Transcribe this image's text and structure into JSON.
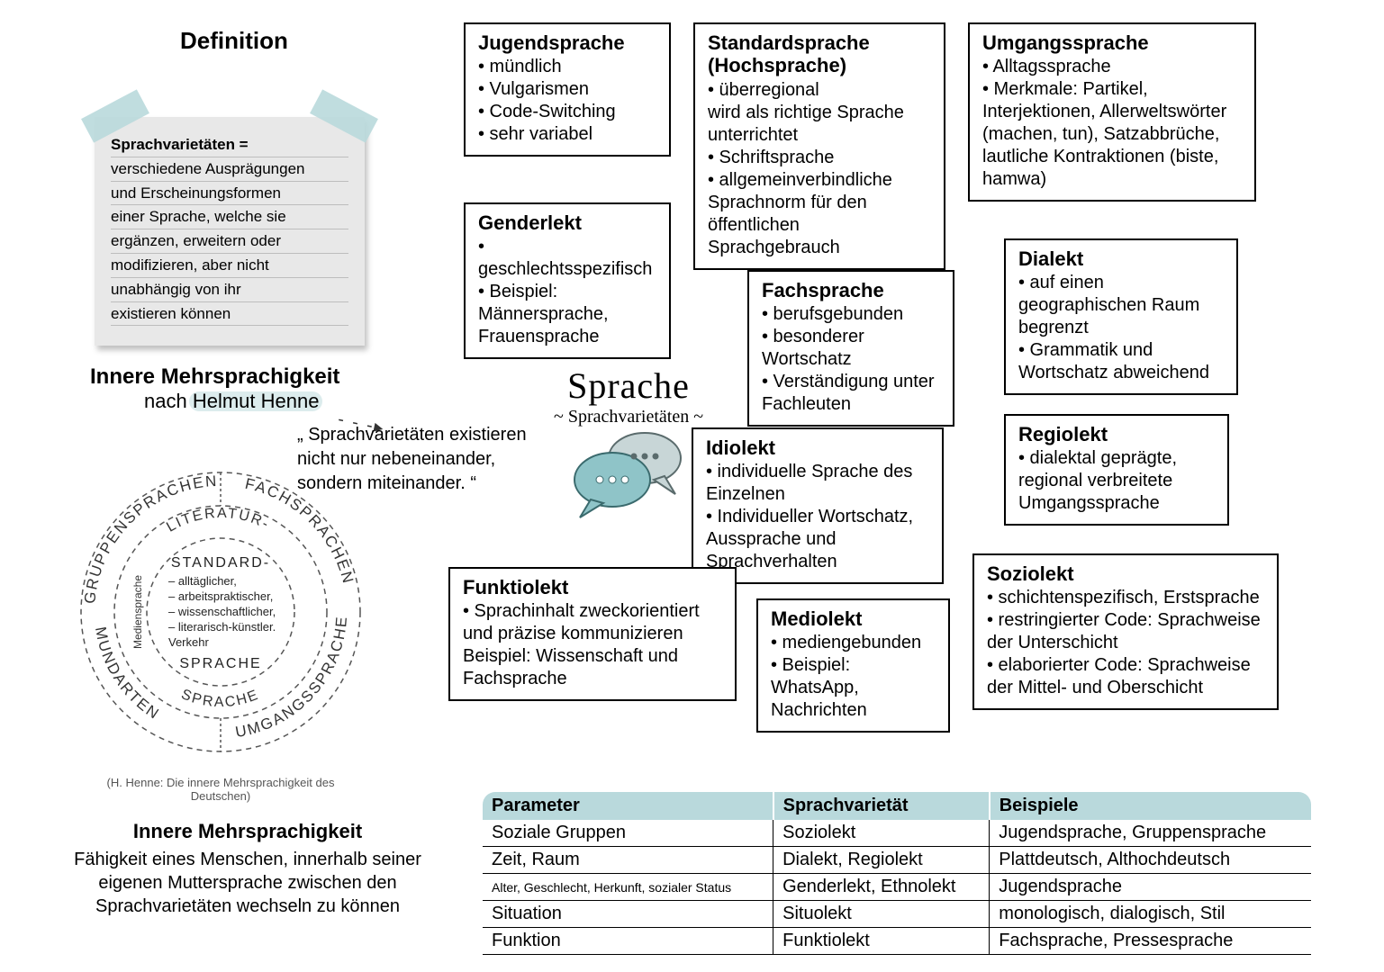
{
  "colors": {
    "accent": "#b9d9dc",
    "note_bg": "#e8e8e8",
    "border": "#000000"
  },
  "definition": {
    "heading": "Definition",
    "note_title": "Sprachvarietäten =",
    "note_lines": [
      "verschiedene Ausprägungen",
      "und Erscheinungsformen",
      "einer Sprache, welche sie",
      "ergänzen, erweitern oder",
      "modifizieren, aber nicht",
      "unabhängig von ihr",
      "existieren können"
    ]
  },
  "innere": {
    "title": "Innere Mehrsprachigkeit",
    "sub_prefix": "nach ",
    "sub_highlight": "Helmut Henne",
    "quote": "„ Sprachvarietäten existieren nicht nur nebeneinander, sondern miteinander. “",
    "caption": "(H. Henne: Die innere Mehrsprachigkeit des Deutschen)",
    "bottom_title": "Innere Mehrsprachigkeit",
    "bottom_text": "Fähigkeit eines Menschen, innerhalb seiner eigenen Muttersprache zwischen den Sprachvarietäten wechseln zu können"
  },
  "circle": {
    "outer_labels": [
      "GRUPPENSPRACHEN",
      "FACHSPRACHEN",
      "UMGANGSSPRACHEN",
      "MUNDARTEN"
    ],
    "mid_top": "LITERATUR-",
    "mid_left": "Mediensprache",
    "mid_bottom": "SPRACHE",
    "inner_title": "STANDARD-",
    "inner_items": [
      "– alltäglicher,",
      "– arbeitspraktischer,",
      "– wissenschaftlicher,",
      "– literarisch-künstler.",
      "   Verkehr"
    ],
    "inner_bottom": "SPRACHE"
  },
  "central": {
    "title": "Sprache",
    "sub": "~ Sprachvarietäten ~"
  },
  "boxes": {
    "jugendsprache": {
      "title": "Jugendsprache",
      "body": "• mündlich\n• Vulgarismen\n• Code-Switching\n• sehr variabel"
    },
    "genderlekt": {
      "title": "Genderlekt",
      "body": "• geschlechtsspezifisch\n• Beispiel:\nMännersprache,\nFrauensprache"
    },
    "standard": {
      "title": "Standardsprache (Hochsprache)",
      "body": "• überregional\nwird als richtige Sprache unterrichtet\n• Schriftsprache\n• allgemeinverbindliche Sprachnorm für den öffentlichen Sprachgebrauch"
    },
    "umgang": {
      "title": "Umgangssprache",
      "body": "• Alltagssprache\n• Merkmale: Partikel, Interjektionen, Allerweltswörter (machen, tun), Satzabbrüche, lautliche Kontraktionen (biste, hamwa)"
    },
    "fachsprache": {
      "title": "Fachsprache",
      "body": "• berufsgebunden\n• besonderer Wortschatz\n• Verständigung unter Fachleuten"
    },
    "dialekt": {
      "title": "Dialekt",
      "body": "• auf einen geographischen Raum begrenzt\n• Grammatik und Wortschatz abweichend"
    },
    "idiolekt": {
      "title": "Idiolekt",
      "body": "• individuelle Sprache des Einzelnen\n• Individueller Wortschatz, Aussprache und Sprachverhalten"
    },
    "regiolekt": {
      "title": "Regiolekt",
      "body": "• dialektal geprägte, regional verbreitete Umgangssprache"
    },
    "funktiolekt": {
      "title": "Funktiolekt",
      "body": "• Sprachinhalt zweckorientiert und präzise kommunizieren\nBeispiel: Wissenschaft und Fachsprache"
    },
    "mediolekt": {
      "title": "Mediolekt",
      "body": "• mediengebunden\n• Beispiel:\nWhatsApp,\nNachrichten"
    },
    "soziolekt": {
      "title": "Soziolekt",
      "body": "• schichtenspezifisch, Erstsprache\n• restringierter Code: Sprachweise der Unterschicht\n• elaborierter Code: Sprachweise der Mittel- und Oberschicht"
    }
  },
  "table": {
    "headers": [
      "Parameter",
      "Sprachvarietät",
      "Beispiele"
    ],
    "rows": [
      [
        "Soziale Gruppen",
        "Soziolekt",
        "Jugendsprache, Gruppensprache"
      ],
      [
        "Zeit, Raum",
        "Dialekt, Regiolekt",
        "Plattdeutsch, Althochdeutsch"
      ],
      [
        "Alter, Geschlecht, Herkunft, sozialer Status",
        "Genderlekt, Ethnolekt",
        "Jugendsprache"
      ],
      [
        "Situation",
        "Situolekt",
        "monologisch, dialogisch, Stil"
      ],
      [
        "Funktion",
        "Funktiolekt",
        "Fachsprache, Pressesprache"
      ]
    ],
    "small_row_index": 2
  }
}
